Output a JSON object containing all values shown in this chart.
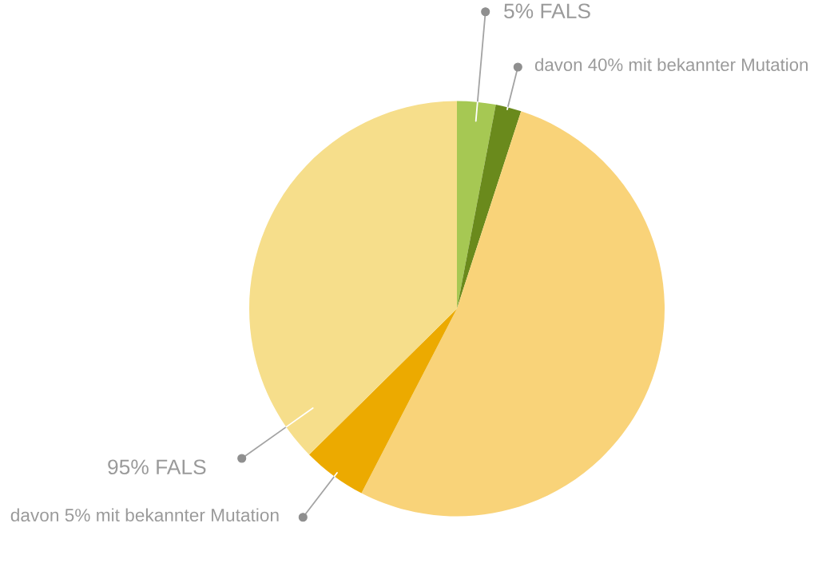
{
  "chart_data": {
    "type": "pie",
    "categories": [
      "5% FALS",
      "davon 40% mit bekannter Mutation",
      null,
      "davon 5% mit bekannter Mutation",
      "95% FALS"
    ],
    "values": [
      3,
      2,
      52.6,
      5,
      37.4
    ],
    "colors": [
      "#a6c853",
      "#6a8a1c",
      "#f9d379",
      "#ecaa00",
      "#f6de8b"
    ]
  }
}
